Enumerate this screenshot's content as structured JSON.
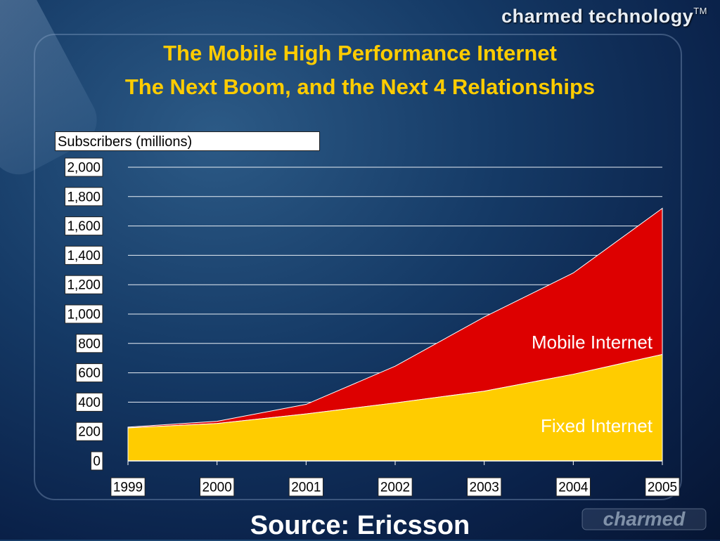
{
  "brand": "charmed technology",
  "brand_tm": "TM",
  "title_line1": "The Mobile High Performance Internet",
  "title_line2": "The Next Boom, and the Next 4 Relationships",
  "source": "Source: Ericsson",
  "logo_text": "charmed",
  "colors": {
    "mobile": "#dd0000",
    "fixed": "#ffcc00",
    "title": "#ffcc00",
    "background": "#0f2d57"
  },
  "chart_data": {
    "type": "area",
    "stacked": true,
    "ylabel": "Subscribers (millions)",
    "x": [
      "1999",
      "2000",
      "2001",
      "2002",
      "2003",
      "2004",
      "2005"
    ],
    "ylim": [
      0,
      2000
    ],
    "yticks": [
      "0",
      "200",
      "400",
      "600",
      "800",
      "1,000",
      "1,200",
      "1,400",
      "1,600",
      "1,800",
      "2,000"
    ],
    "grid": true,
    "series": [
      {
        "name": "Fixed Internet",
        "values": [
          225,
          255,
          320,
          395,
          475,
          590,
          725
        ]
      },
      {
        "name": "Mobile Internet",
        "values": [
          5,
          15,
          65,
          250,
          505,
          690,
          995
        ]
      }
    ]
  }
}
